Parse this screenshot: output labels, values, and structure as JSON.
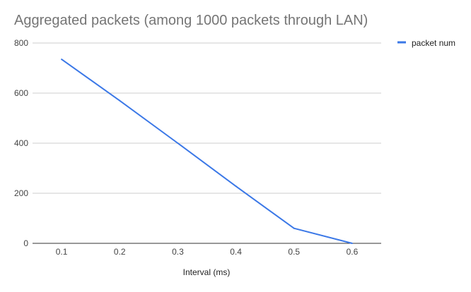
{
  "chart_data": {
    "type": "line",
    "title": "Aggregated packets (among 1000 packets through LAN)",
    "xlabel": "Interval (ms)",
    "ylabel": "",
    "x": [
      0.1,
      0.2,
      0.3,
      0.4,
      0.5,
      0.6
    ],
    "x_tick_labels": [
      "0.1",
      "0.2",
      "0.3",
      "0.4",
      "0.5",
      "0.6"
    ],
    "ylim": [
      0,
      800
    ],
    "y_ticks": [
      0,
      200,
      400,
      600,
      800
    ],
    "y_tick_labels": [
      "0",
      "200",
      "400",
      "600",
      "800"
    ],
    "grid": true,
    "legend_position": "top-right",
    "series": [
      {
        "name": "packet num",
        "color": "#3b78e7",
        "values": [
          735,
          570,
          400,
          228,
          60,
          0
        ]
      }
    ]
  }
}
